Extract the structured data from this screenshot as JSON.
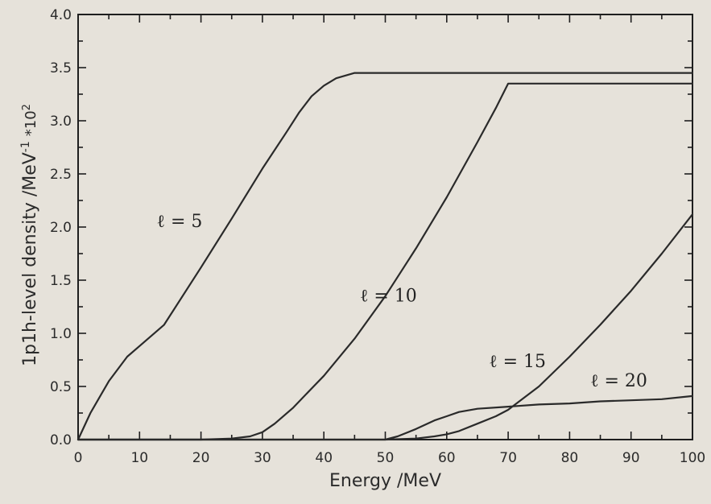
{
  "chart_data": {
    "type": "line",
    "xlabel": "Energy  /MeV",
    "ylabel": "1p1h-level density  /MeV",
    "ylabel_superscript": "-1",
    "y_multiplier_label": "*10",
    "y_multiplier_superscript": "2",
    "xlim": [
      0,
      100
    ],
    "ylim": [
      0.0,
      4.0
    ],
    "x_ticks": [
      "0",
      "10",
      "20",
      "30",
      "40",
      "50",
      "60",
      "70",
      "80",
      "90",
      "100"
    ],
    "y_ticks": [
      "0.0",
      "0.5",
      "1.0",
      "1.5",
      "2.0",
      "2.5",
      "3.0",
      "3.5",
      "4.0"
    ],
    "grid": false,
    "series": [
      {
        "name": "ℓ = 5",
        "x": [
          0,
          2,
          5,
          8,
          10,
          14,
          20,
          25,
          30,
          34,
          36,
          38,
          40,
          42,
          45,
          50,
          60,
          70,
          80,
          90,
          100
        ],
        "y": [
          0.0,
          0.25,
          0.55,
          0.78,
          0.88,
          1.08,
          1.62,
          2.08,
          2.55,
          2.9,
          3.08,
          3.23,
          3.33,
          3.4,
          3.45,
          3.45,
          3.45,
          3.45,
          3.45,
          3.45,
          3.45
        ]
      },
      {
        "name": "ℓ = 10",
        "x": [
          0,
          10,
          20,
          25,
          28,
          30,
          32,
          35,
          38,
          40,
          45,
          50,
          55,
          60,
          65,
          68,
          70,
          75,
          80,
          90,
          100
        ],
        "y": [
          0.0,
          0.0,
          0.0,
          0.01,
          0.03,
          0.07,
          0.15,
          0.3,
          0.48,
          0.6,
          0.95,
          1.35,
          1.8,
          2.28,
          2.8,
          3.12,
          3.35,
          3.35,
          3.35,
          3.35,
          3.35
        ]
      },
      {
        "name": "ℓ = 15",
        "x": [
          0,
          40,
          50,
          55,
          58,
          60,
          62,
          65,
          68,
          70,
          75,
          80,
          85,
          90,
          95,
          100
        ],
        "y": [
          0.0,
          0.0,
          0.0,
          0.01,
          0.03,
          0.05,
          0.08,
          0.15,
          0.22,
          0.28,
          0.5,
          0.78,
          1.08,
          1.4,
          1.75,
          2.12
        ]
      },
      {
        "name": "ℓ = 20",
        "x": [
          0,
          50,
          52,
          55,
          58,
          60,
          62,
          65,
          70,
          75,
          80,
          85,
          90,
          95,
          100
        ],
        "y": [
          0.0,
          0.0,
          0.03,
          0.1,
          0.18,
          0.22,
          0.26,
          0.29,
          0.31,
          0.33,
          0.34,
          0.36,
          0.37,
          0.38,
          0.41
        ]
      }
    ],
    "annotations": [
      {
        "series": 0,
        "label": "ℓ = 5",
        "x": 16.5,
        "y": 2.0
      },
      {
        "series": 1,
        "label": "ℓ = 10",
        "x": 50.5,
        "y": 1.3
      },
      {
        "series": 2,
        "label": "ℓ = 15",
        "x": 71.5,
        "y": 0.68
      },
      {
        "series": 3,
        "label": "ℓ = 20",
        "x": 88,
        "y": 0.5
      }
    ],
    "colors": {
      "line": "#2a2a2a",
      "axis": "#1e1e1e",
      "background": "#e6e2da",
      "text": "#2b2b2b"
    }
  }
}
